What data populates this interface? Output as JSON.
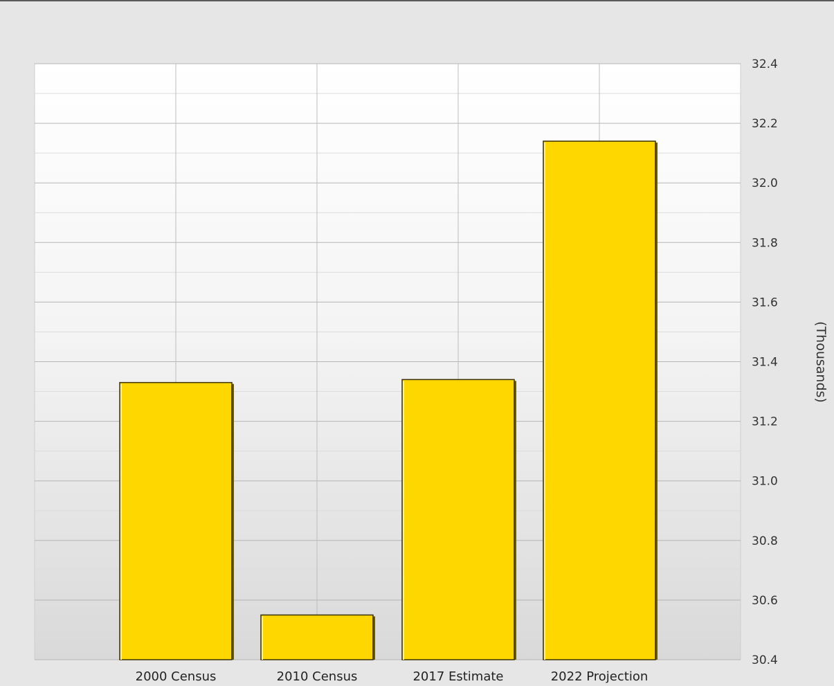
{
  "chart_data": {
    "type": "bar",
    "categories": [
      "2000 Census",
      "2010 Census",
      "2017 Estimate",
      "2022 Projection"
    ],
    "values": [
      31.33,
      30.55,
      31.34,
      32.14
    ],
    "ylabel": "(Thousands)",
    "ylim": [
      30.4,
      32.4
    ],
    "yticks": [
      "30.4",
      "30.6",
      "30.8",
      "31.0",
      "31.2",
      "31.4",
      "31.6",
      "31.8",
      "32.0",
      "32.2",
      "32.4"
    ],
    "y_axis_side": "right",
    "grid": true,
    "bar_color": "#FFD700",
    "bar_border_color": "#3a3000"
  }
}
